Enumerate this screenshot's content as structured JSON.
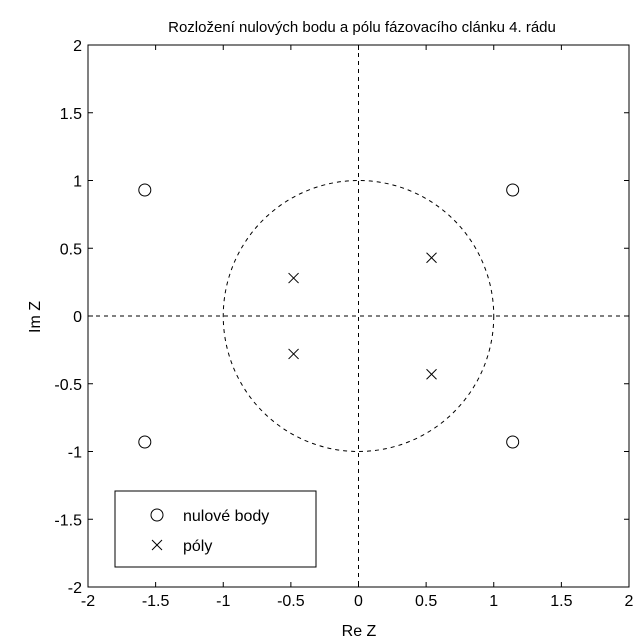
{
  "chart_data": {
    "type": "scatter",
    "title": "Rozložení nulových bodu a pólu fázovacího clánku 4. rádu",
    "xlabel": "Re Z",
    "ylabel": "Im Z",
    "xlim": [
      -2,
      2
    ],
    "ylim": [
      -2,
      2
    ],
    "xticks": [
      -2,
      -1.5,
      -1,
      -0.5,
      0,
      0.5,
      1,
      1.5,
      2
    ],
    "yticks": [
      -2,
      -1.5,
      -1,
      -0.5,
      0,
      0.5,
      1,
      1.5,
      2
    ],
    "xtick_labels": [
      "-2",
      "-1.5",
      "-1",
      "-0.5",
      "0",
      "0.5",
      "1",
      "1.5",
      "2"
    ],
    "ytick_labels": [
      "-2",
      "-1.5",
      "-1",
      "-0.5",
      "0",
      "0.5",
      "1",
      "1.5",
      "2"
    ],
    "grid": false,
    "legend_position": "bottom-left",
    "unit_circle": {
      "center": [
        0,
        0
      ],
      "radius": 1,
      "style": "dashed"
    },
    "reference_lines": {
      "x": 0,
      "y": 0,
      "style": "dashed"
    },
    "series": [
      {
        "name": "nulové body",
        "marker": "circle",
        "points": [
          [
            -1.58,
            0.93
          ],
          [
            -1.58,
            -0.93
          ],
          [
            1.14,
            0.93
          ],
          [
            1.14,
            -0.93
          ]
        ]
      },
      {
        "name": "póly",
        "marker": "cross",
        "points": [
          [
            -0.48,
            0.28
          ],
          [
            -0.48,
            -0.28
          ],
          [
            0.54,
            0.43
          ],
          [
            0.54,
            -0.43
          ]
        ]
      }
    ]
  }
}
